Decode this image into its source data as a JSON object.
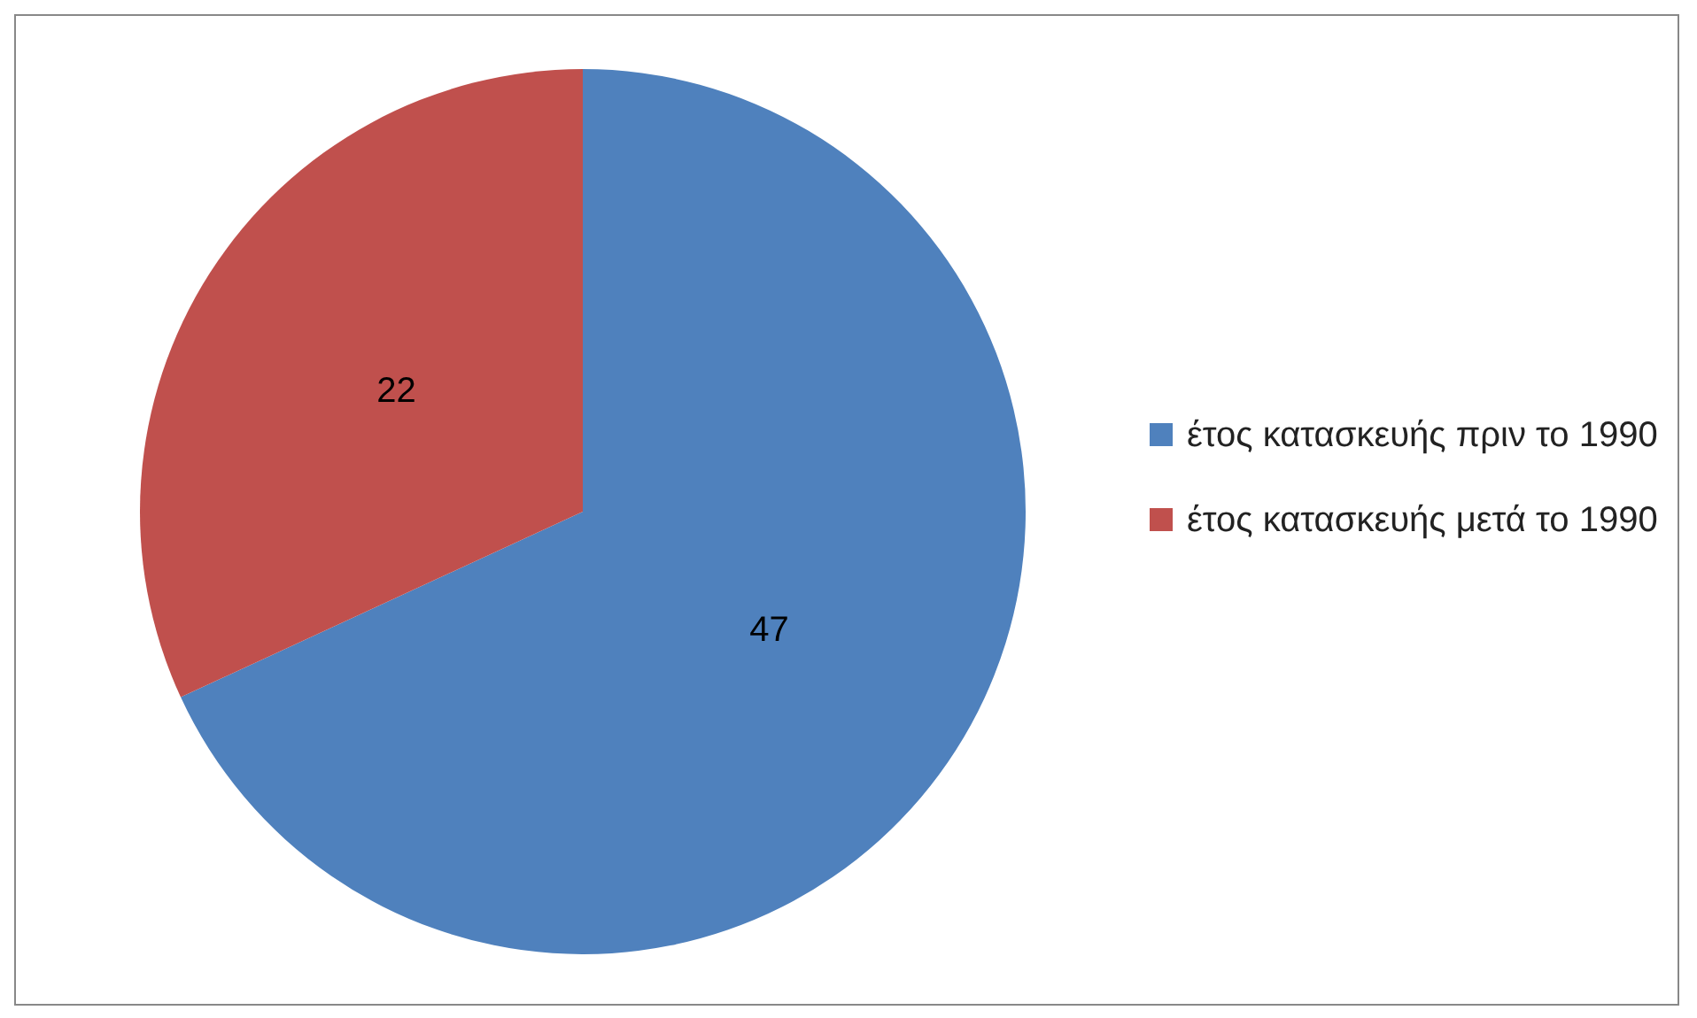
{
  "chart_data": {
    "type": "pie",
    "categories": [
      "έτος κατασκευής πριν το 1990",
      "έτος κατασκευής μετά το 1990"
    ],
    "values": [
      47,
      22
    ],
    "colors": [
      "#4f81bd",
      "#c0504d"
    ],
    "data_labels": true,
    "legend": "right"
  }
}
